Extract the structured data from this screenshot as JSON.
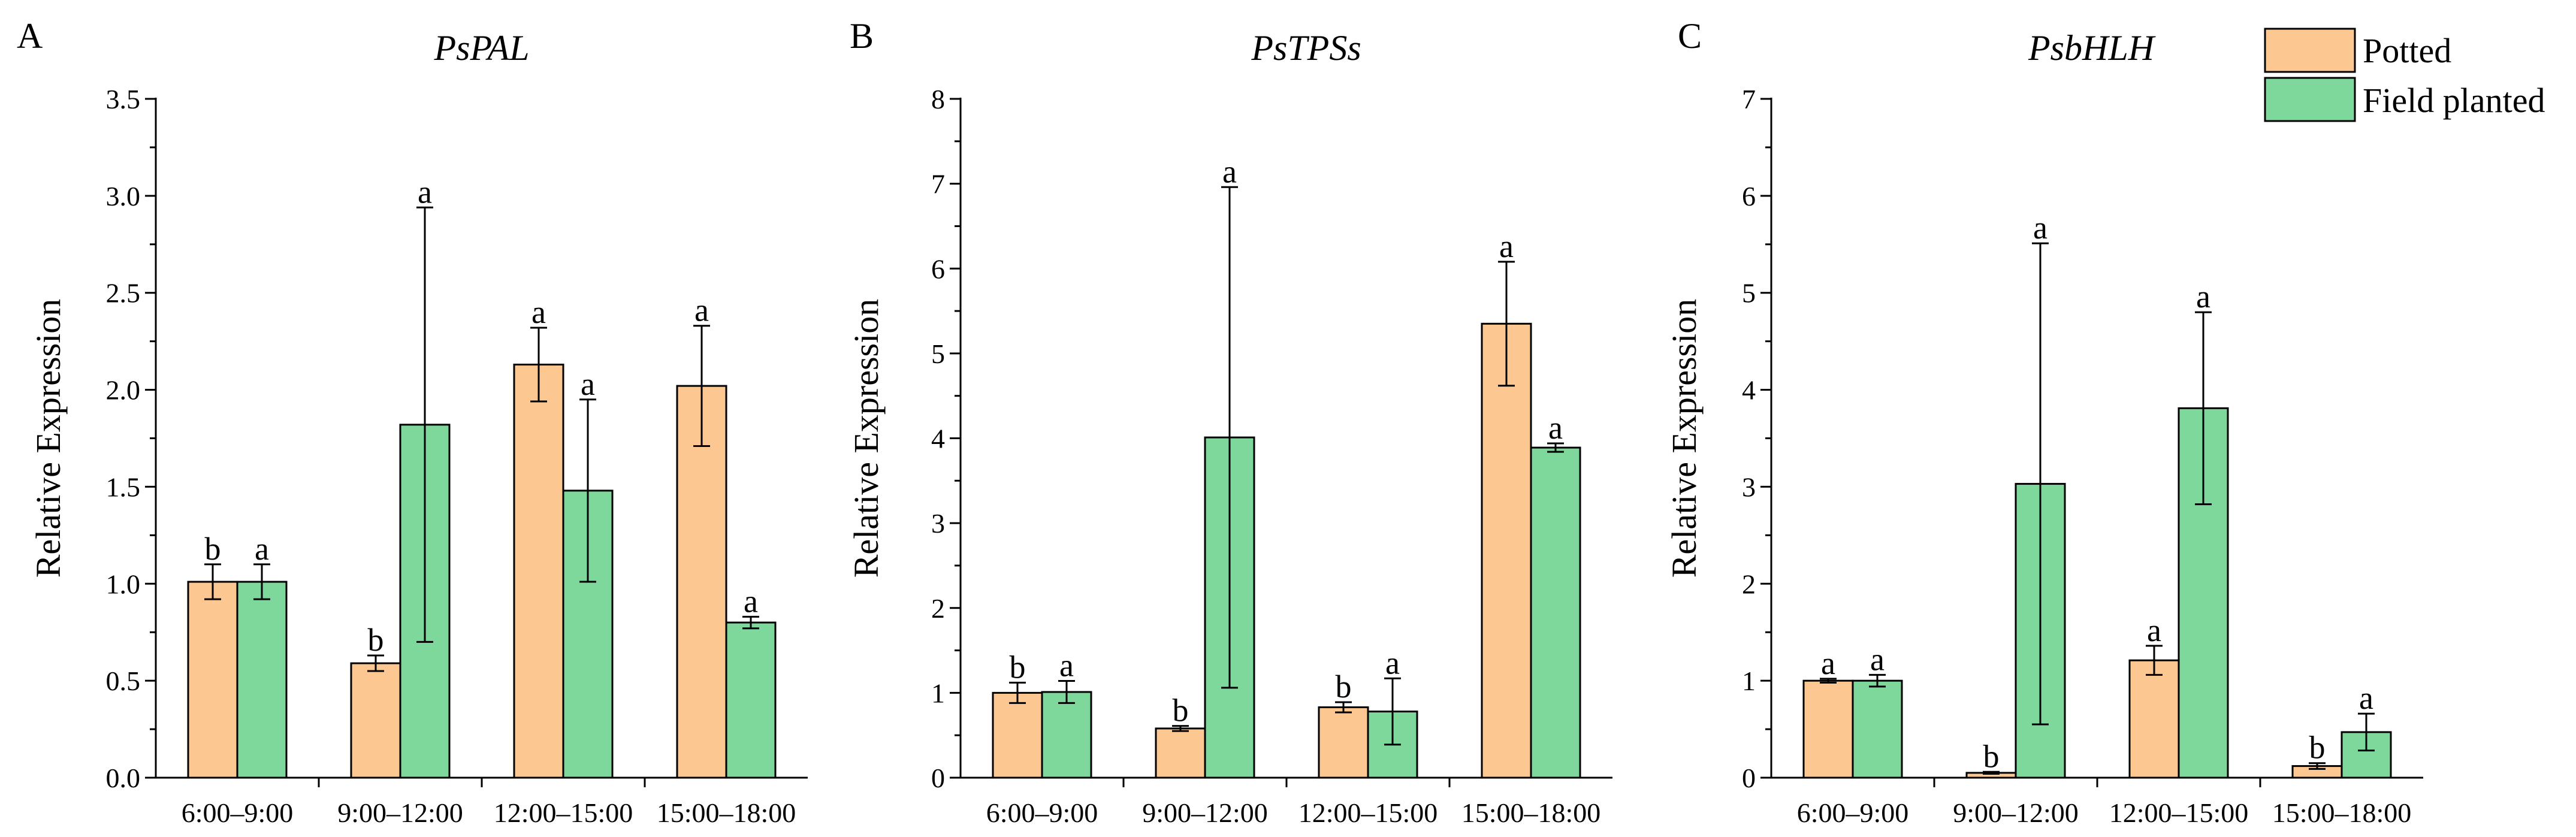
{
  "figure": {
    "legend": [
      {
        "label": "Potted",
        "color": "#FCC791"
      },
      {
        "label": "Field planted",
        "color": "#7ED79B"
      }
    ]
  },
  "chart_data": [
    {
      "type": "bar",
      "panel_label": "A",
      "title": "PsPAL",
      "xlabel": "",
      "ylabel": "Relative Expression",
      "categories": [
        "6:00–9:00",
        "9:00–12:00",
        "12:00–15:00",
        "15:00–18:00"
      ],
      "ylim": [
        0,
        3.5
      ],
      "yticks": [
        "0.0",
        "0.5",
        "1.0",
        "1.5",
        "2.0",
        "2.5",
        "3.0",
        "3.5"
      ],
      "series": [
        {
          "name": "Potted",
          "color": "#FCC791",
          "values": [
            1.01,
            0.59,
            2.13,
            2.02
          ],
          "errors": [
            0.09,
            0.04,
            0.19,
            0.31
          ],
          "letters": [
            "b",
            "b",
            "a",
            "a"
          ]
        },
        {
          "name": "Field planted",
          "color": "#7ED79B",
          "values": [
            1.01,
            1.82,
            1.48,
            0.8
          ],
          "errors": [
            0.09,
            1.12,
            0.47,
            0.03
          ],
          "letters": [
            "a",
            "a",
            "a",
            "a"
          ]
        }
      ]
    },
    {
      "type": "bar",
      "panel_label": "B",
      "title": "PsTPSs",
      "xlabel": "",
      "ylabel": "Relative Expression",
      "categories": [
        "6:00–9:00",
        "9:00–12:00",
        "12:00–15:00",
        "15:00–18:00"
      ],
      "ylim": [
        0,
        8
      ],
      "yticks": [
        "0",
        "1",
        "2",
        "3",
        "4",
        "5",
        "6",
        "7",
        "8"
      ],
      "series": [
        {
          "name": "Potted",
          "color": "#FCC791",
          "values": [
            1.0,
            0.58,
            0.83,
            5.35
          ],
          "errors": [
            0.12,
            0.03,
            0.06,
            0.73
          ],
          "letters": [
            "b",
            "b",
            "b",
            "a"
          ]
        },
        {
          "name": "Field planted",
          "color": "#7ED79B",
          "values": [
            1.01,
            4.01,
            0.78,
            3.89
          ],
          "errors": [
            0.13,
            2.95,
            0.39,
            0.05
          ],
          "letters": [
            "a",
            "a",
            "a",
            "a"
          ]
        }
      ]
    },
    {
      "type": "bar",
      "panel_label": "C",
      "title": "PsbHLH",
      "xlabel": "",
      "ylabel": "Relative Expression",
      "categories": [
        "6:00–9:00",
        "9:00–12:00",
        "12:00–15:00",
        "15:00–18:00"
      ],
      "ylim": [
        0,
        7
      ],
      "yticks": [
        "0",
        "1",
        "2",
        "3",
        "4",
        "5",
        "6",
        "7"
      ],
      "series": [
        {
          "name": "Potted",
          "color": "#FCC791",
          "values": [
            1.0,
            0.05,
            1.21,
            0.12
          ],
          "errors": [
            0.02,
            0.01,
            0.15,
            0.03
          ],
          "letters": [
            "a",
            "b",
            "a",
            "b"
          ]
        },
        {
          "name": "Field planted",
          "color": "#7ED79B",
          "values": [
            1.0,
            3.03,
            3.81,
            0.47
          ],
          "errors": [
            0.06,
            2.48,
            0.99,
            0.19
          ],
          "letters": [
            "a",
            "a",
            "a",
            "a"
          ]
        }
      ]
    }
  ]
}
